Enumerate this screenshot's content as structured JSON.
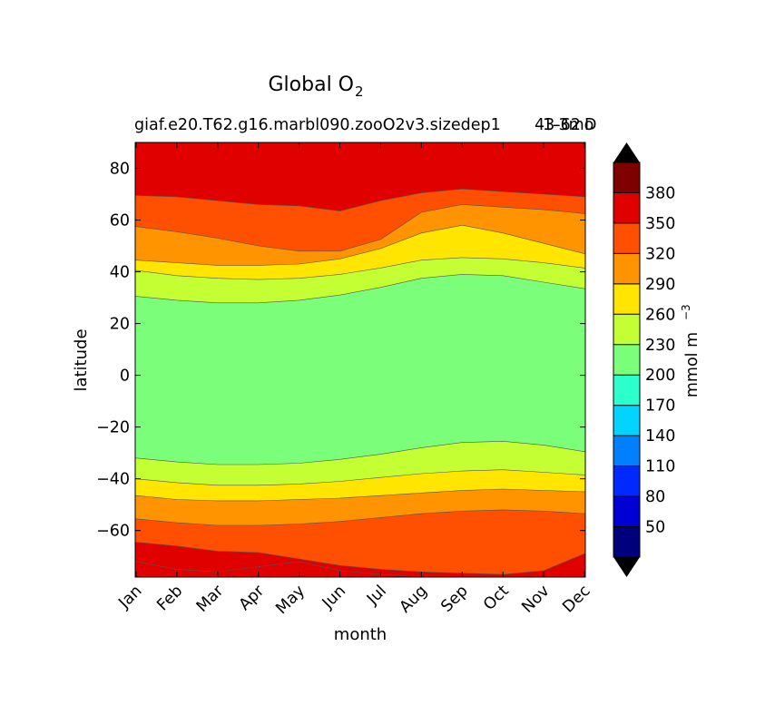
{
  "chart_data": {
    "type": "heatmap",
    "title": "Global O",
    "title_subscript": "2",
    "subtitle_left": "giaf.e20.T62.g16.marbl090.zooO2v3.sizedep1",
    "subtitle_overlap_a": "43-62",
    "subtitle_overlap_b": "1-3mo",
    "subtitle_end": "D",
    "xlabel": "month",
    "ylabel": "latitude",
    "x": [
      "Jan",
      "Feb",
      "Mar",
      "Apr",
      "May",
      "Jun",
      "Jul",
      "Aug",
      "Sep",
      "Oct",
      "Nov",
      "Dec"
    ],
    "ylim": [
      -78,
      90
    ],
    "yticks": [
      80,
      60,
      40,
      20,
      0,
      -20,
      -40,
      -60
    ],
    "ytick_labels": [
      "80",
      "60",
      "40",
      "20",
      "0",
      "−20",
      "−40",
      "−60"
    ],
    "colorbar": {
      "label": "mmol m",
      "label_exponent": "−3",
      "levels": [
        20,
        50,
        80,
        110,
        140,
        170,
        200,
        230,
        260,
        290,
        320,
        350,
        380,
        410
      ],
      "tick_labels": [
        "50",
        "80",
        "110",
        "140",
        "170",
        "200",
        "230",
        "260",
        "290",
        "320",
        "350",
        "380"
      ],
      "colors": [
        "#00007f",
        "#0000d4",
        "#0029ff",
        "#0080ff",
        "#00d4ff",
        "#2bffcc",
        "#7bff7b",
        "#c4ff33",
        "#ffe500",
        "#ff9400",
        "#ff4f00",
        "#e00000",
        "#7f0000"
      ],
      "extend": "both",
      "extend_color": "#000000"
    },
    "contour_boundaries": {
      "200": {
        "north": [
          30.5,
          29,
          28,
          28,
          29,
          31,
          34,
          37.5,
          39,
          38.5,
          36,
          33.5
        ],
        "south": [
          -32,
          -33.5,
          -34.5,
          -34.5,
          -34,
          -32.5,
          -30.5,
          -28,
          -26,
          -25.5,
          -27,
          -29.5
        ]
      },
      "230": {
        "north": [
          40.5,
          38.5,
          37.5,
          37,
          37.5,
          39,
          41.5,
          44.5,
          45.5,
          45,
          43.5,
          41.5
        ],
        "south": [
          -40,
          -41.5,
          -42.5,
          -42.5,
          -42,
          -41,
          -39.5,
          -38,
          -37,
          -36.5,
          -37.5,
          -38.5
        ]
      },
      "260": {
        "north": [
          44.5,
          43.5,
          42.5,
          42.5,
          43,
          45,
          49,
          55,
          58,
          55,
          51,
          47
        ],
        "south": [
          -46.5,
          -48,
          -48.5,
          -48.5,
          -48,
          -47.5,
          -46.5,
          -45.5,
          -44.5,
          -44,
          -44.5,
          -45
        ]
      },
      "290": {
        "north": [
          57.5,
          55.5,
          53,
          50,
          48,
          48,
          52.5,
          63,
          66,
          65,
          64,
          62.5
        ],
        "south": [
          -55.5,
          -57,
          -58,
          -58,
          -57.5,
          -56.5,
          -55,
          -53.5,
          -52.5,
          -52,
          -52.5,
          -53.5
        ]
      },
      "320": {
        "north": [
          69.5,
          69,
          67.5,
          66,
          65.5,
          63.5,
          67.5,
          70.5,
          72,
          71,
          70,
          69
        ],
        "south": [
          -64.5,
          -66,
          -68,
          -68.5,
          -71,
          -73.5,
          -75,
          -76,
          -76.5,
          -77,
          -75.5,
          -69
        ]
      },
      "350": {
        "south": [
          -72,
          -75,
          -76,
          -74,
          -72,
          -75.5,
          -77,
          -78,
          -78,
          -78,
          -78,
          -78
        ]
      }
    }
  }
}
